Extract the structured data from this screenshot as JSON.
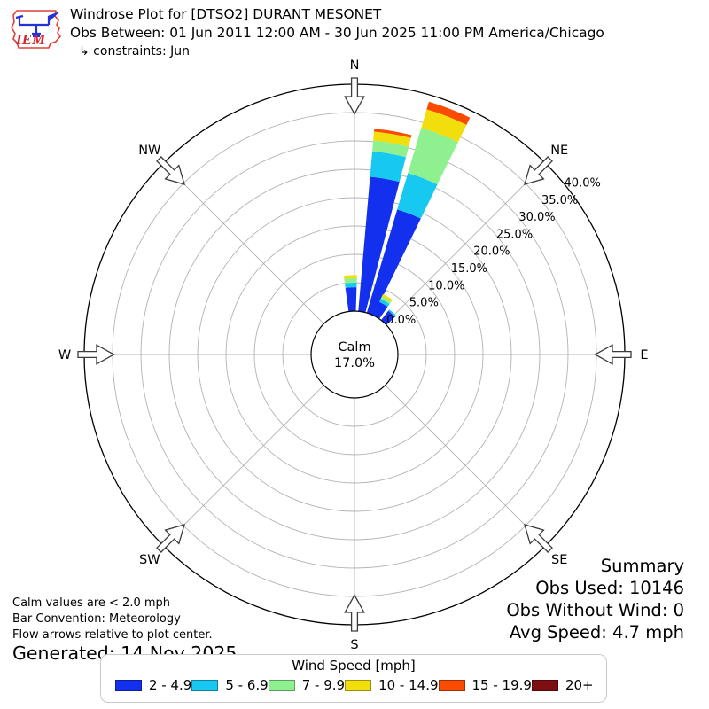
{
  "header": {
    "title": "Windrose Plot for [DTSO2] DURANT MESONET",
    "subtitle": "Obs Between: 01 Jun 2011 12:00 AM - 30 Jun 2025 11:00 PM America/Chicago",
    "constraints": "↳ constraints: Jun",
    "logo_text": "IEM"
  },
  "notes": {
    "line1": "Calm values are < 2.0 mph",
    "line2": "Bar Convention: Meteorology",
    "line3": "Flow arrows relative to plot center.",
    "generated": "Generated: 14 Nov 2025"
  },
  "summary": {
    "title": "Summary",
    "obs_used": "Obs Used: 10146",
    "obs_without_wind": "Obs Without Wind: 0",
    "avg_speed": "Avg Speed: 4.7 mph"
  },
  "legend": {
    "title": "Wind Speed [mph]"
  },
  "chart_data": {
    "type": "bar",
    "variant": "polar-windrose",
    "title": "Windrose Plot for [DTSO2] DURANT MESONET",
    "units": "mph",
    "grid": true,
    "calm": {
      "label": "Calm",
      "pct_label": "17.0%",
      "pct": 17.0
    },
    "ring_values_pct": [
      0,
      5,
      10,
      15,
      20,
      25,
      30,
      35,
      40
    ],
    "ring_labels": [
      "0.0%",
      "5.0%",
      "10.0%",
      "15.0%",
      "20.0%",
      "25.0%",
      "30.0%",
      "35.0%",
      "40.0%"
    ],
    "ring_label_azimuth_deg": 53,
    "compass_labels": [
      "N",
      "NE",
      "E",
      "SE",
      "S",
      "SW",
      "W",
      "NW"
    ],
    "speed_bins": [
      {
        "label": "2 - 4.9",
        "color": "#1330ee"
      },
      {
        "label": "5 - 6.9",
        "color": "#17c9f1"
      },
      {
        "label": "7 - 9.9",
        "color": "#8ef08e"
      },
      {
        "label": "10 - 14.9",
        "color": "#f2dd0d"
      },
      {
        "label": "15 - 19.9",
        "color": "#fa4b00"
      },
      {
        "label": "20+",
        "color": "#7d0f12"
      }
    ],
    "bar_width_deg": 9.6,
    "bars": [
      {
        "azimuth_deg": 357.0,
        "segments_pct": [
          4.2,
          0.8,
          0.8,
          0.55,
          0,
          0
        ]
      },
      {
        "azimuth_deg": 9.8,
        "segments_pct": [
          23.8,
          4.5,
          1.9,
          1.6,
          0.5,
          0
        ]
      },
      {
        "azimuth_deg": 21.2,
        "segments_pct": [
          19.0,
          6.7,
          8.3,
          3.4,
          1.4,
          0
        ]
      },
      {
        "azimuth_deg": 30.0,
        "segments_pct": [
          2.6,
          0.6,
          0.45,
          0.45,
          0,
          0
        ]
      },
      {
        "azimuth_deg": 42.5,
        "segments_pct": [
          2.1,
          0.3,
          0,
          0,
          0,
          0
        ]
      }
    ]
  }
}
